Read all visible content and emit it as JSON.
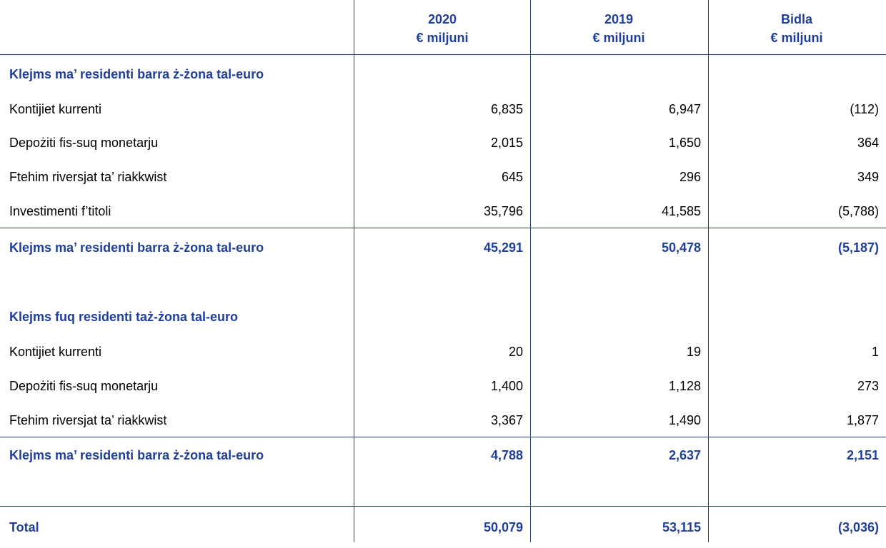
{
  "header": {
    "col1_year": "2020",
    "col1_unit": "€ miljuni",
    "col2_year": "2019",
    "col2_unit": "€ miljuni",
    "col3_year": "Bidla",
    "col3_unit": "€ miljuni"
  },
  "section1": {
    "title": "Klejms ma’ residenti barra ż-żona tal-euro",
    "rows": [
      {
        "label": "Kontijiet kurrenti",
        "v2020": "6,835",
        "v2019": "6,947",
        "change": "(112)"
      },
      {
        "label": "Depożiti fis-suq monetarju",
        "v2020": "2,015",
        "v2019": "1,650",
        "change": "364"
      },
      {
        "label": "Ftehim riversjat ta’ riakkwist",
        "v2020": "645",
        "v2019": "296",
        "change": "349"
      },
      {
        "label": "Investimenti f’titoli",
        "v2020": "35,796",
        "v2019": "41,585",
        "change": "(5,788)"
      }
    ],
    "total": {
      "label": "Klejms ma’ residenti barra ż-żona tal-euro",
      "v2020": "45,291",
      "v2019": "50,478",
      "change": "(5,187)"
    }
  },
  "section2": {
    "title": "Klejms fuq residenti taż-żona tal-euro",
    "rows": [
      {
        "label": "Kontijiet kurrenti",
        "v2020": "20",
        "v2019": "19",
        "change": "1"
      },
      {
        "label": "Depożiti fis-suq monetarju",
        "v2020": "1,400",
        "v2019": "1,128",
        "change": "273"
      },
      {
        "label": "Ftehim riversjat ta’ riakkwist",
        "v2020": "3,367",
        "v2019": "1,490",
        "change": "1,877"
      }
    ],
    "total": {
      "label": "Klejms ma’ residenti barra ż-żona tal-euro",
      "v2020": "4,788",
      "v2019": "2,637",
      "change": "2,151"
    }
  },
  "grand_total": {
    "label": "Total",
    "v2020": "50,079",
    "v2019": "53,115",
    "change": "(3,036)"
  }
}
